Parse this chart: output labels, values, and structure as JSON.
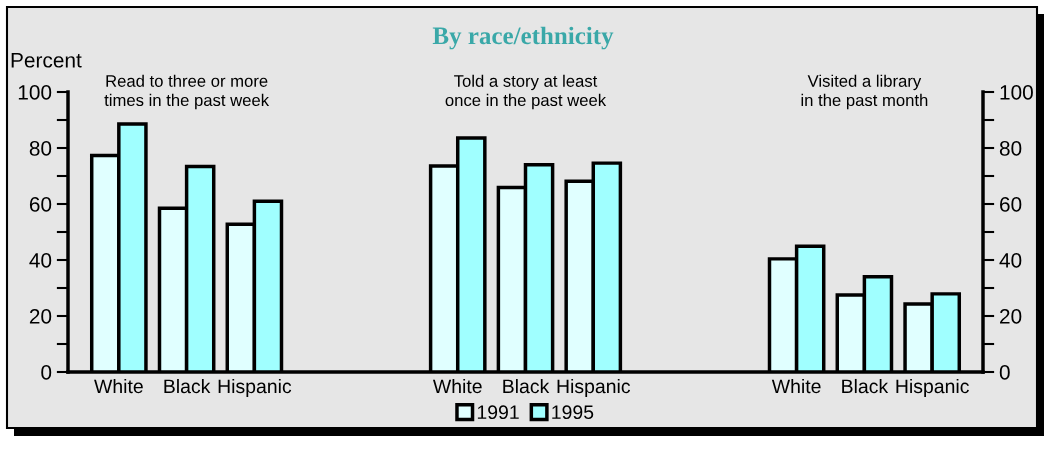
{
  "chart_data": {
    "type": "bar",
    "title": "By race/ethnicity",
    "ylabel": "Percent",
    "categories": [
      "White",
      "Black",
      "Hispanic",
      null,
      null,
      "White",
      "Black",
      "Hispanic",
      null,
      null,
      "White",
      "Black",
      "Hispanic"
    ],
    "series": [
      {
        "name": "1991",
        "color": "#e0ffff",
        "values": [
          77.3,
          58.5,
          52.8,
          null,
          null,
          73.6,
          65.9,
          68.1,
          null,
          null,
          40.4,
          27.5,
          24.3
        ]
      },
      {
        "name": "1995",
        "color": "#a0ffff",
        "values": [
          88.6,
          73.4,
          61,
          null,
          null,
          83.6,
          74,
          74.6,
          null,
          null,
          44.9,
          34,
          27.9
        ]
      }
    ],
    "annotations": [
      "Read to three or more\ntimes in the past week",
      "Told a story at least\nonce in the past week",
      "Visited a library\nin the past month"
    ],
    "ylim": [
      0,
      100
    ],
    "yticks": [
      0,
      {
        "value": 10,
        "label": null
      },
      20,
      {
        "value": 30,
        "label": null
      },
      40,
      {
        "value": 50,
        "label": null
      },
      60,
      {
        "value": 70,
        "label": null
      },
      80,
      {
        "value": 90,
        "label": null
      },
      100
    ],
    "y2lim": [
      0,
      100
    ],
    "y2ticks": [
      0,
      {
        "value": 10,
        "label": null
      },
      20,
      {
        "value": 30,
        "label": null
      },
      40,
      {
        "value": 50,
        "label": null
      },
      60,
      {
        "value": 70,
        "label": null
      },
      80,
      {
        "value": 90,
        "label": null
      },
      100
    ],
    "grid": false,
    "legend": "bottom"
  }
}
